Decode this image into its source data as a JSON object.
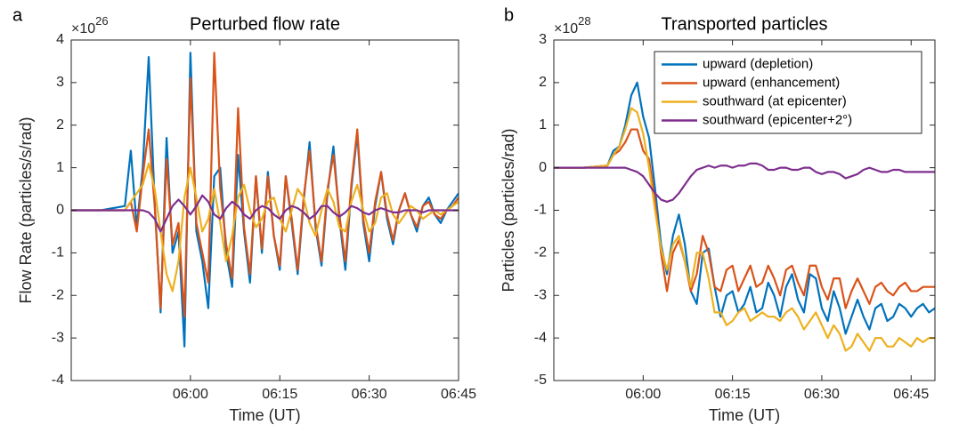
{
  "chart_data": [
    {
      "type": "line",
      "panel_label": "a",
      "title": "Perturbed flow rate",
      "multiplier_base": "×10",
      "multiplier_exponent": "26",
      "xlabel": "Time (UT)",
      "ylabel": "Flow Rate (particles/s/rad)",
      "x": [
        "05:40",
        "05:45",
        "05:49",
        "05:50",
        "05:51",
        "05:52",
        "05:53",
        "05:54",
        "05:55",
        "05:56",
        "05:57",
        "05:58",
        "05:59",
        "06:00",
        "06:01",
        "06:02",
        "06:03",
        "06:04",
        "06:05",
        "06:06",
        "06:07",
        "06:08",
        "06:09",
        "06:10",
        "06:11",
        "06:12",
        "06:13",
        "06:14",
        "06:15",
        "06:16",
        "06:17",
        "06:18",
        "06:19",
        "06:20",
        "06:21",
        "06:22",
        "06:23",
        "06:24",
        "06:25",
        "06:26",
        "06:27",
        "06:28",
        "06:29",
        "06:30",
        "06:31",
        "06:32",
        "06:33",
        "06:34",
        "06:35",
        "06:36",
        "06:37",
        "06:38",
        "06:39",
        "06:40",
        "06:41",
        "06:42",
        "06:43",
        "06:44",
        "06:45"
      ],
      "xlim": [
        "05:40",
        "06:45"
      ],
      "xticks": [
        "06:00",
        "06:15",
        "06:30",
        "06:45"
      ],
      "ylim": [
        -4,
        4
      ],
      "yticks": [
        -4,
        -3,
        -2,
        -1,
        0,
        1,
        2,
        3,
        4
      ],
      "grid": false,
      "legend": "none",
      "series": [
        {
          "color": "#0072bd",
          "values": [
            0,
            0,
            0.1,
            1.4,
            -0.4,
            1.0,
            3.6,
            0.2,
            -2.4,
            1.7,
            -1.0,
            -0.5,
            -3.2,
            3.7,
            -0.5,
            -1.2,
            -2.3,
            0.8,
            1.0,
            -1.0,
            -1.8,
            1.3,
            -0.5,
            -1.7,
            0.8,
            -1.0,
            0.9,
            -0.6,
            -1.4,
            0.8,
            -0.3,
            -1.5,
            0.2,
            1.6,
            -0.4,
            -1.3,
            0.4,
            1.5,
            -0.2,
            -1.4,
            0.5,
            1.8,
            -0.3,
            -1.2,
            0.1,
            0.9,
            -0.2,
            -0.8,
            0.0,
            0.4,
            -0.1,
            -0.5,
            0.1,
            0.3,
            -0.1,
            -0.3,
            0.0,
            0.2,
            0.4
          ]
        },
        {
          "color": "#d95319",
          "values": [
            0,
            0,
            0,
            0.2,
            -0.5,
            0.8,
            1.9,
            0.1,
            -2.3,
            1.2,
            -0.8,
            -0.3,
            -2.5,
            3.1,
            -0.3,
            -1.0,
            -1.7,
            3.7,
            0.5,
            -0.8,
            -1.6,
            2.4,
            -0.4,
            -1.5,
            0.8,
            -0.9,
            0.8,
            -0.6,
            -1.3,
            0.8,
            -0.2,
            -1.4,
            0.3,
            1.4,
            -0.3,
            -1.2,
            0.5,
            1.3,
            -0.1,
            -1.2,
            0.6,
            1.9,
            -0.2,
            -1.0,
            0.2,
            0.9,
            -0.1,
            -0.7,
            0.0,
            0.4,
            -0.1,
            -0.4,
            0.1,
            0.2,
            -0.1,
            -0.2,
            0.0,
            0.1,
            0.3
          ]
        },
        {
          "color": "#edb120",
          "values": [
            0,
            0,
            0,
            0.2,
            0.4,
            0.6,
            1.1,
            0.5,
            -0.5,
            -1.5,
            -1.9,
            -1.2,
            0.3,
            1.0,
            0.3,
            -0.5,
            -0.2,
            0.5,
            -0.3,
            -1.2,
            -0.6,
            0.3,
            0.6,
            0.0,
            -0.4,
            -0.2,
            0.2,
            0.3,
            -0.2,
            -0.5,
            0.0,
            0.5,
            0.3,
            -0.3,
            -0.6,
            0.0,
            0.5,
            0.2,
            -0.4,
            -0.5,
            0.2,
            0.6,
            0.0,
            -0.5,
            -0.3,
            0.3,
            0.4,
            -0.1,
            -0.3,
            -0.1,
            0.1,
            0.0,
            -0.2,
            -0.1,
            0.0,
            -0.1,
            0.0,
            0.1,
            0.2
          ]
        },
        {
          "color": "#7e2f8e",
          "values": [
            0,
            0,
            0,
            0,
            0,
            0,
            -0.05,
            -0.2,
            -0.5,
            -0.2,
            0.1,
            0.25,
            0.1,
            -0.1,
            0.1,
            0.35,
            0.2,
            -0.1,
            -0.2,
            0.05,
            0.2,
            0.1,
            -0.1,
            -0.2,
            0.0,
            0.1,
            0.05,
            -0.1,
            -0.2,
            0.0,
            0.1,
            0.05,
            -0.05,
            -0.2,
            -0.1,
            0.1,
            0.1,
            -0.05,
            -0.15,
            -0.05,
            0.1,
            0.05,
            -0.05,
            -0.1,
            0.0,
            0.05,
            0.0,
            -0.05,
            -0.05,
            0.0,
            0.0,
            0.0,
            -0.05,
            0.0,
            0.0,
            0.0,
            0.0,
            0.0,
            0.0
          ]
        }
      ]
    },
    {
      "type": "line",
      "panel_label": "b",
      "title": "Transported particles",
      "multiplier_base": "×10",
      "multiplier_exponent": "28",
      "xlabel": "Time (UT)",
      "ylabel": "Particles (particles/rad)",
      "x": [
        "05:45",
        "05:50",
        "05:54",
        "05:55",
        "05:56",
        "05:57",
        "05:58",
        "05:59",
        "06:00",
        "06:01",
        "06:02",
        "06:03",
        "06:04",
        "06:05",
        "06:06",
        "06:07",
        "06:08",
        "06:09",
        "06:10",
        "06:11",
        "06:12",
        "06:13",
        "06:14",
        "06:15",
        "06:16",
        "06:17",
        "06:18",
        "06:19",
        "06:20",
        "06:21",
        "06:22",
        "06:23",
        "06:24",
        "06:25",
        "06:26",
        "06:27",
        "06:28",
        "06:29",
        "06:30",
        "06:31",
        "06:32",
        "06:33",
        "06:34",
        "06:35",
        "06:36",
        "06:37",
        "06:38",
        "06:39",
        "06:40",
        "06:41",
        "06:42",
        "06:43",
        "06:44",
        "06:45",
        "06:46",
        "06:47",
        "06:48",
        "06:49"
      ],
      "xlim": [
        "05:45",
        "06:49"
      ],
      "xticks": [
        "06:00",
        "06:15",
        "06:30",
        "06:45"
      ],
      "ylim": [
        -5,
        3
      ],
      "yticks": [
        -5,
        -4,
        -3,
        -2,
        -1,
        0,
        1,
        2,
        3
      ],
      "grid": false,
      "legend": "upper right",
      "series": [
        {
          "name": "upward (depletion)",
          "color": "#0072bd",
          "values": [
            0,
            0,
            0.05,
            0.4,
            0.5,
            1.0,
            1.7,
            2.0,
            1.2,
            0.7,
            -0.5,
            -1.8,
            -2.5,
            -1.6,
            -1.1,
            -1.8,
            -2.9,
            -3.2,
            -2.0,
            -1.9,
            -2.8,
            -3.5,
            -3.0,
            -2.9,
            -3.4,
            -3.2,
            -2.8,
            -3.4,
            -3.3,
            -2.7,
            -3.0,
            -3.5,
            -2.8,
            -2.5,
            -3.1,
            -3.4,
            -2.5,
            -2.6,
            -3.3,
            -3.6,
            -2.9,
            -3.3,
            -3.9,
            -3.5,
            -3.1,
            -3.5,
            -3.8,
            -3.3,
            -3.2,
            -3.6,
            -3.5,
            -3.2,
            -3.3,
            -3.5,
            -3.3,
            -3.2,
            -3.4,
            -3.3
          ]
        },
        {
          "name": "upward (enhancement)",
          "color": "#d95319",
          "values": [
            0,
            0,
            0.05,
            0.3,
            0.4,
            0.6,
            0.9,
            0.9,
            0.4,
            0.2,
            -0.8,
            -2.0,
            -2.9,
            -2.0,
            -1.7,
            -2.2,
            -2.9,
            -2.5,
            -1.6,
            -2.0,
            -2.8,
            -2.9,
            -2.4,
            -2.3,
            -2.9,
            -2.6,
            -2.3,
            -2.8,
            -2.7,
            -2.3,
            -2.6,
            -3.0,
            -2.4,
            -2.3,
            -2.7,
            -3.0,
            -2.3,
            -2.3,
            -2.8,
            -3.1,
            -2.6,
            -2.6,
            -3.3,
            -2.9,
            -2.6,
            -2.9,
            -3.2,
            -2.8,
            -2.7,
            -2.9,
            -3.0,
            -2.8,
            -2.7,
            -2.9,
            -2.9,
            -2.8,
            -2.8,
            -2.8
          ]
        },
        {
          "name": "southward (at epicenter)",
          "color": "#edb120",
          "values": [
            0,
            0,
            0.05,
            0.3,
            0.5,
            0.9,
            1.4,
            1.3,
            0.8,
            0.0,
            -1.0,
            -1.9,
            -2.4,
            -1.8,
            -1.6,
            -2.2,
            -2.8,
            -2.0,
            -2.0,
            -2.6,
            -3.4,
            -3.4,
            -3.7,
            -3.6,
            -3.4,
            -3.3,
            -3.6,
            -3.5,
            -3.4,
            -3.5,
            -3.5,
            -3.6,
            -3.4,
            -3.3,
            -3.5,
            -3.8,
            -3.6,
            -3.4,
            -3.7,
            -4.0,
            -3.7,
            -3.9,
            -4.3,
            -4.2,
            -3.9,
            -4.1,
            -4.3,
            -4.0,
            -4.0,
            -4.2,
            -4.2,
            -4.0,
            -4.1,
            -4.2,
            -4.0,
            -4.1,
            -4.0,
            -4.0
          ]
        },
        {
          "name": "southward (epicenter+2°)",
          "color": "#7e2f8e",
          "values": [
            0,
            0,
            0,
            0,
            0,
            0,
            -0.05,
            -0.1,
            -0.2,
            -0.4,
            -0.6,
            -0.75,
            -0.8,
            -0.75,
            -0.6,
            -0.4,
            -0.2,
            -0.05,
            0.0,
            0.05,
            0.0,
            0.05,
            0.05,
            0.0,
            0.05,
            0.05,
            0.1,
            0.1,
            0.05,
            -0.05,
            -0.05,
            0.0,
            0.0,
            -0.05,
            -0.05,
            0.0,
            0.0,
            -0.1,
            -0.15,
            -0.1,
            -0.1,
            -0.15,
            -0.25,
            -0.2,
            -0.15,
            -0.05,
            0.0,
            -0.05,
            -0.1,
            -0.1,
            -0.05,
            -0.05,
            -0.1,
            -0.1,
            -0.1,
            -0.1,
            -0.1,
            -0.1
          ]
        }
      ]
    }
  ]
}
